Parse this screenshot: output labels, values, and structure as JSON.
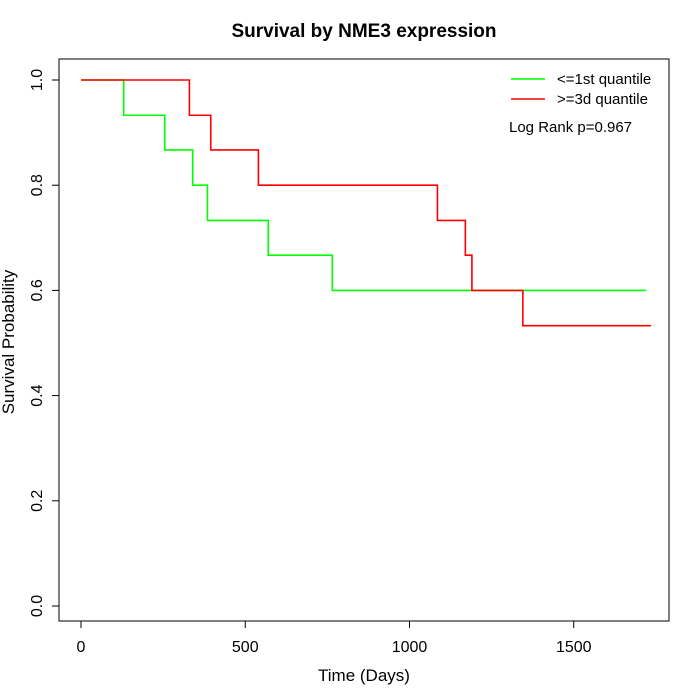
{
  "chart_data": {
    "type": "line",
    "step": true,
    "title": "Survival by NME3 expression",
    "xlabel": "Time (Days)",
    "ylabel": "Survival Probability",
    "xlim": [
      0,
      1750
    ],
    "ylim": [
      0,
      1.0
    ],
    "xticks": [
      0,
      500,
      1000,
      1500
    ],
    "xtick_labels": [
      "0",
      "500",
      "1000",
      "1500"
    ],
    "yticks": [
      0.0,
      0.2,
      0.4,
      0.6,
      0.8,
      1.0
    ],
    "ytick_labels": [
      "0.0",
      "0.2",
      "0.4",
      "0.6",
      "0.8",
      "1.0"
    ],
    "grid": false,
    "legend_position": "top-right",
    "annotation": "Log Rank p=0.967",
    "series": [
      {
        "name": "<=1st quantile",
        "color": "#00ff00",
        "x": [
          0,
          130,
          255,
          340,
          385,
          570,
          765,
          1720
        ],
        "y": [
          1.0,
          0.933,
          0.867,
          0.8,
          0.733,
          0.667,
          0.6,
          0.6
        ]
      },
      {
        "name": ">=3d quantile",
        "color": "#ff0000",
        "x": [
          0,
          330,
          395,
          540,
          1085,
          1170,
          1190,
          1345,
          1735
        ],
        "y": [
          1.0,
          0.933,
          0.867,
          0.8,
          0.733,
          0.667,
          0.6,
          0.533,
          0.533
        ]
      }
    ]
  }
}
